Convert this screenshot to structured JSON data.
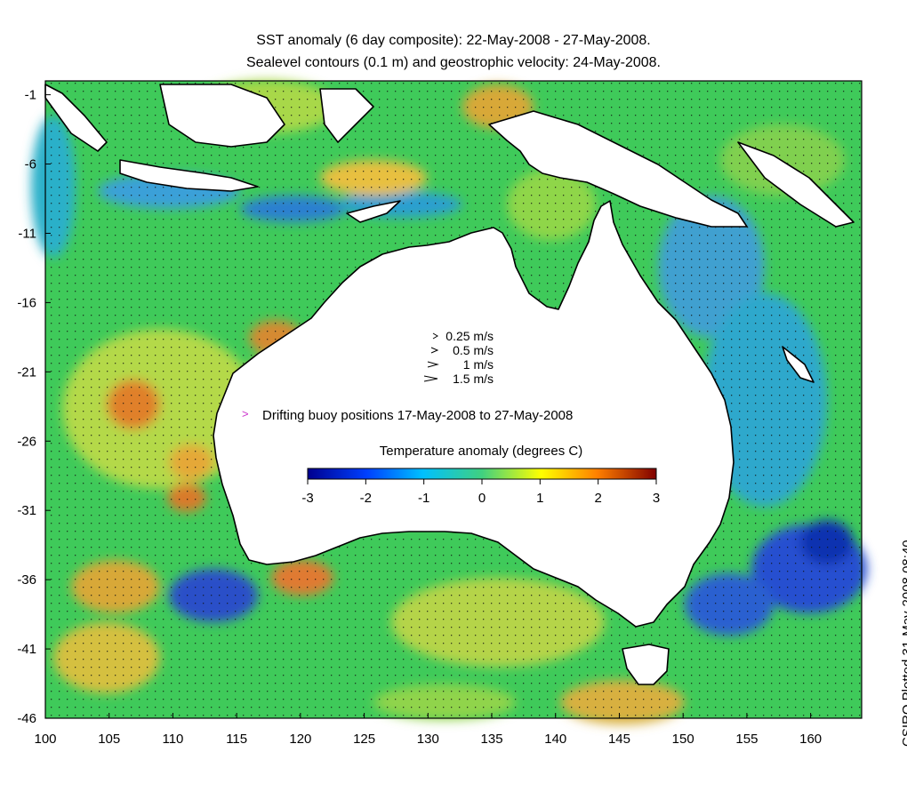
{
  "title": {
    "line1": "SST anomaly (6 day composite): 22-May-2008 - 27-May-2008.",
    "line2": "Sealevel contours (0.1 m) and geostrophic velocity: 24-May-2008."
  },
  "credit": "CSIRO Plotted 31-May-2008 08:40",
  "map": {
    "lon_range": [
      100,
      164
    ],
    "lat_range": [
      -46,
      0
    ],
    "lon_ticks": [
      "100",
      "105",
      "110",
      "115",
      "120",
      "125",
      "130",
      "135",
      "140",
      "145",
      "150",
      "155",
      "160"
    ],
    "lat_ticks": [
      "-1",
      "-6",
      "-11",
      "-16",
      "-21",
      "-26",
      "-31",
      "-36",
      "-41",
      "-46"
    ],
    "velocity_legend": [
      {
        "label": "0.25 m/s",
        "speed": 0.25
      },
      {
        "label": "0.5 m/s",
        "speed": 0.5
      },
      {
        "label": "1 m/s",
        "speed": 1
      },
      {
        "label": "1.5 m/s",
        "speed": 1.5
      }
    ],
    "buoy_label": "Drifting buoy positions 17-May-2008 to 27-May-2008",
    "buoy_color": "#cc33cc",
    "colorbar": {
      "title": "Temperature anomaly (degrees C)",
      "ticks": [
        "-3",
        "-2",
        "-1",
        "0",
        "1",
        "2",
        "3"
      ],
      "range": [
        -3,
        3
      ],
      "colors": [
        "#00008f",
        "#0040ff",
        "#00c0ff",
        "#40d080",
        "#ffff00",
        "#ff8000",
        "#800000"
      ]
    }
  }
}
